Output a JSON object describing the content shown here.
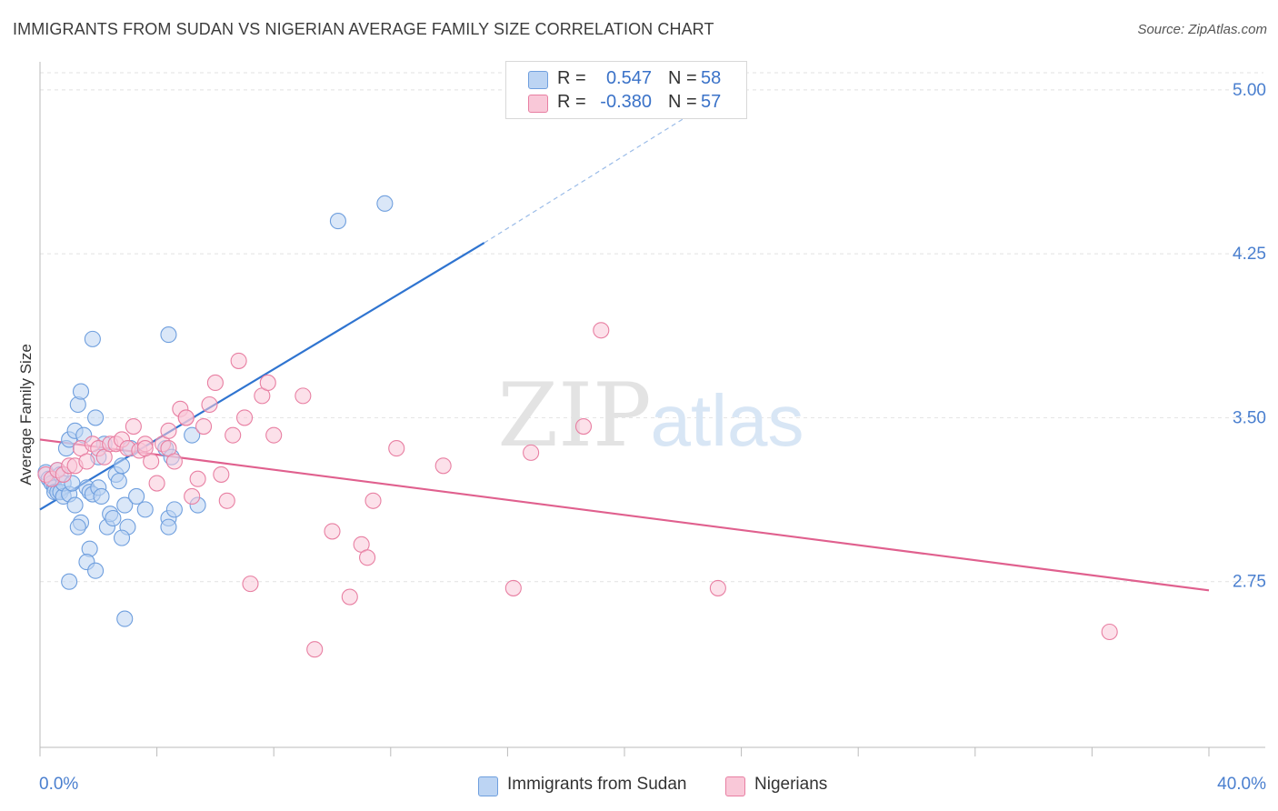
{
  "title": "IMMIGRANTS FROM SUDAN VS NIGERIAN AVERAGE FAMILY SIZE CORRELATION CHART",
  "source": "Source: ZipAtlas.com",
  "watermark": {
    "zip": "ZIP",
    "atlas": "atlas"
  },
  "legend": {
    "rows": [
      {
        "r_label": "R =",
        "r_value": "0.547",
        "n_label": "N =",
        "n_value": "58",
        "color": "#aac8f0",
        "text_color": "#3a72c8"
      },
      {
        "r_label": "R =",
        "r_value": "-0.380",
        "n_label": "N =",
        "n_value": "57",
        "color": "#f7b8cc",
        "text_color": "#3a72c8"
      }
    ]
  },
  "chart_data": {
    "type": "scatter",
    "title": "IMMIGRANTS FROM SUDAN VS NIGERIAN AVERAGE FAMILY SIZE CORRELATION CHART",
    "xlabel": "",
    "ylabel": "Average Family Size",
    "xlim": [
      0,
      40
    ],
    "ylim": [
      2.0,
      5.12
    ],
    "x_tick_labels": [
      "0.0%",
      "40.0%"
    ],
    "y_ticks": [
      2.75,
      3.5,
      4.25,
      5.0
    ],
    "y_tick_labels": [
      "2.75",
      "3.50",
      "4.25",
      "5.00"
    ],
    "grid": true,
    "legend_position": "top-center",
    "series": [
      {
        "name": "Immigrants from Sudan",
        "color": "#6f9fde",
        "fill": "#bcd4f3",
        "points": [
          [
            0.2,
            3.25
          ],
          [
            0.3,
            3.22
          ],
          [
            0.4,
            3.2
          ],
          [
            0.5,
            3.18
          ],
          [
            0.5,
            3.16
          ],
          [
            0.6,
            3.16
          ],
          [
            0.7,
            3.16
          ],
          [
            0.8,
            3.14
          ],
          [
            0.6,
            3.26
          ],
          [
            0.7,
            3.24
          ],
          [
            0.8,
            3.2
          ],
          [
            0.9,
            3.36
          ],
          [
            1.0,
            3.15
          ],
          [
            1.1,
            3.2
          ],
          [
            1.2,
            3.1
          ],
          [
            1.0,
            3.4
          ],
          [
            1.2,
            3.44
          ],
          [
            1.3,
            3.56
          ],
          [
            1.4,
            3.62
          ],
          [
            1.5,
            3.42
          ],
          [
            1.6,
            3.18
          ],
          [
            1.4,
            3.02
          ],
          [
            1.7,
            3.16
          ],
          [
            1.8,
            3.15
          ],
          [
            1.9,
            3.5
          ],
          [
            2.0,
            3.18
          ],
          [
            2.1,
            3.14
          ],
          [
            2.2,
            3.38
          ],
          [
            2.3,
            3.0
          ],
          [
            2.4,
            3.06
          ],
          [
            2.5,
            3.04
          ],
          [
            2.6,
            3.24
          ],
          [
            2.7,
            3.21
          ],
          [
            2.8,
            3.28
          ],
          [
            2.9,
            3.1
          ],
          [
            3.0,
            3.0
          ],
          [
            1.0,
            2.75
          ],
          [
            1.7,
            2.9
          ],
          [
            1.6,
            2.84
          ],
          [
            1.9,
            2.8
          ],
          [
            2.8,
            2.95
          ],
          [
            3.1,
            3.36
          ],
          [
            3.3,
            3.14
          ],
          [
            3.6,
            3.08
          ],
          [
            4.3,
            3.36
          ],
          [
            4.4,
            3.04
          ],
          [
            4.5,
            3.32
          ],
          [
            4.6,
            3.08
          ],
          [
            5.2,
            3.42
          ],
          [
            5.4,
            3.1
          ],
          [
            1.8,
            3.86
          ],
          [
            4.4,
            3.88
          ],
          [
            10.2,
            4.4
          ],
          [
            11.8,
            4.48
          ],
          [
            2.9,
            2.58
          ],
          [
            4.4,
            3.0
          ],
          [
            2.0,
            3.32
          ],
          [
            1.3,
            3.0
          ]
        ],
        "trend": {
          "x0": 0,
          "y0": 3.08,
          "x1": 15.2,
          "y1": 4.3,
          "dash_to_x": 23,
          "dash_to_y": 4.95
        }
      },
      {
        "name": "Nigerians",
        "color": "#e87fa2",
        "fill": "#f9c8d8",
        "points": [
          [
            0.2,
            3.24
          ],
          [
            0.4,
            3.22
          ],
          [
            0.6,
            3.26
          ],
          [
            0.8,
            3.24
          ],
          [
            1.0,
            3.28
          ],
          [
            1.2,
            3.28
          ],
          [
            1.4,
            3.36
          ],
          [
            1.6,
            3.3
          ],
          [
            1.8,
            3.38
          ],
          [
            2.0,
            3.36
          ],
          [
            2.2,
            3.32
          ],
          [
            2.4,
            3.38
          ],
          [
            2.6,
            3.38
          ],
          [
            2.8,
            3.4
          ],
          [
            3.0,
            3.36
          ],
          [
            3.2,
            3.46
          ],
          [
            3.4,
            3.35
          ],
          [
            3.6,
            3.38
          ],
          [
            3.8,
            3.3
          ],
          [
            4.0,
            3.2
          ],
          [
            4.2,
            3.38
          ],
          [
            4.4,
            3.36
          ],
          [
            4.6,
            3.3
          ],
          [
            4.8,
            3.54
          ],
          [
            5.0,
            3.5
          ],
          [
            5.2,
            3.14
          ],
          [
            5.4,
            3.22
          ],
          [
            5.6,
            3.46
          ],
          [
            5.8,
            3.56
          ],
          [
            6.0,
            3.66
          ],
          [
            6.2,
            3.24
          ],
          [
            6.4,
            3.12
          ],
          [
            6.6,
            3.42
          ],
          [
            6.8,
            3.76
          ],
          [
            7.0,
            3.5
          ],
          [
            7.2,
            2.74
          ],
          [
            7.6,
            3.6
          ],
          [
            7.8,
            3.66
          ],
          [
            8.0,
            3.42
          ],
          [
            9.0,
            3.6
          ],
          [
            9.4,
            2.44
          ],
          [
            10.0,
            2.98
          ],
          [
            10.6,
            2.68
          ],
          [
            11.0,
            2.92
          ],
          [
            11.2,
            2.86
          ],
          [
            11.4,
            3.12
          ],
          [
            12.2,
            3.36
          ],
          [
            13.8,
            3.28
          ],
          [
            16.2,
            2.72
          ],
          [
            16.8,
            3.34
          ],
          [
            18.6,
            3.46
          ],
          [
            19.2,
            3.9
          ],
          [
            23.2,
            2.72
          ],
          [
            36.6,
            2.52
          ],
          [
            3.6,
            3.36
          ],
          [
            4.4,
            3.44
          ],
          [
            5.0,
            3.5
          ]
        ],
        "trend": {
          "x0": 0,
          "y0": 3.4,
          "x1": 40,
          "y1": 2.71
        }
      }
    ]
  },
  "bottom_legend": [
    {
      "label": "Immigrants from Sudan",
      "color": "#bcd4f3",
      "border": "#6f9fde"
    },
    {
      "label": "Nigerians",
      "color": "#f9c8d8",
      "border": "#e87fa2"
    }
  ],
  "x_axis": {
    "min_label": "0.0%",
    "max_label": "40.0%"
  }
}
